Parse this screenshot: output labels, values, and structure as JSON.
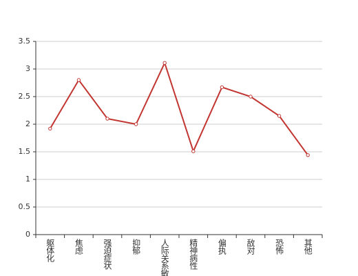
{
  "chart_data": {
    "type": "line",
    "categories": [
      "躯体化",
      "焦虑",
      "强迫症状",
      "抑郁",
      "人际关系敏感",
      "精神病性",
      "偏执",
      "敌对",
      "恐怖",
      "其他"
    ],
    "series": [
      {
        "color": "#c23531",
        "values": [
          1.92,
          2.8,
          2.1,
          2.0,
          3.11,
          1.51,
          2.67,
          2.5,
          2.15,
          1.44
        ]
      }
    ],
    "ylim": [
      0,
      3.5
    ],
    "yticks": [
      0,
      0.5,
      1,
      1.5,
      2,
      2.5,
      3,
      3.5
    ],
    "grid": true
  }
}
